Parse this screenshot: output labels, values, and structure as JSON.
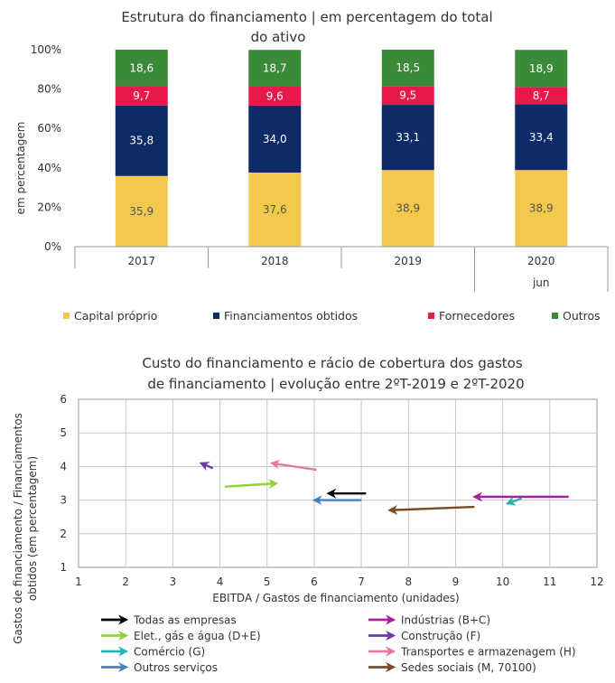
{
  "chart_data": [
    {
      "type": "bar",
      "stacked": true,
      "title_line1": "Estrutura do financiamento | em percentagem do total",
      "title_line2": "do ativo",
      "ylabel": "em percentagem",
      "ylim": [
        0,
        100
      ],
      "yticks": [
        "0%",
        "20%",
        "40%",
        "60%",
        "80%",
        "100%"
      ],
      "categories": [
        "2017",
        "2018",
        "2019",
        "2020"
      ],
      "sub_label": "jun",
      "series": [
        {
          "name": "Capital próprio",
          "color": "#f2c94c",
          "labelColor": "#555555",
          "values": [
            35.9,
            37.6,
            38.9,
            38.9
          ],
          "labels": [
            "35,9",
            "37,6",
            "38,9",
            "38,9"
          ]
        },
        {
          "name": "Financiamentos obtidos",
          "color": "#0d2b66",
          "labelColor": "#ffffff",
          "values": [
            35.8,
            34.0,
            33.1,
            33.4
          ],
          "labels": [
            "35,8",
            "34,0",
            "33,1",
            "33,4"
          ]
        },
        {
          "name": "Fornecedores",
          "color": "#e8194b",
          "labelColor": "#ffffff",
          "values": [
            9.7,
            9.6,
            9.5,
            8.7
          ],
          "labels": [
            "9,7",
            "9,6",
            "9,5",
            "8,7"
          ]
        },
        {
          "name": "Outros",
          "color": "#3a8a3a",
          "labelColor": "#ffffff",
          "values": [
            18.6,
            18.7,
            18.5,
            18.9
          ],
          "labels": [
            "18,6",
            "18,7",
            "18,5",
            "18,9"
          ]
        }
      ]
    },
    {
      "type": "scatter",
      "variant": "arrows",
      "title_line1": "Custo do financiamento e rácio de cobertura dos gastos",
      "title_line2": "de financiamento | evolução entre 2ºT-2019 e 2ºT-2020",
      "xlabel": "EBITDA / Gastos de financiamento (unidades)",
      "ylabel_line1": "Gastos de financiamento / Financiamentos",
      "ylabel_line2": "obtidos (em percentagem)",
      "xlim": [
        1,
        12
      ],
      "ylim": [
        1,
        6
      ],
      "xticks": [
        "1",
        "2",
        "3",
        "4",
        "5",
        "6",
        "7",
        "8",
        "9",
        "10",
        "11",
        "12"
      ],
      "yticks": [
        "1",
        "2",
        "3",
        "4",
        "5",
        "6"
      ],
      "grid": true,
      "series": [
        {
          "name": "Todas as empresas",
          "color": "#000000",
          "from": [
            7.1,
            3.2
          ],
          "to": [
            6.3,
            3.2
          ]
        },
        {
          "name": "Elet., gás e água (D+E)",
          "color": "#8fd43a",
          "from": [
            4.1,
            3.4
          ],
          "to": [
            5.2,
            3.5
          ]
        },
        {
          "name": "Comércio (G)",
          "color": "#2bb3b3",
          "from": [
            10.4,
            3.05
          ],
          "to": [
            10.1,
            2.9
          ]
        },
        {
          "name": "Outros serviços",
          "color": "#4a7fc1",
          "from": [
            7.0,
            3.0
          ],
          "to": [
            6.0,
            3.0
          ]
        },
        {
          "name": "Indústrias (B+C)",
          "color": "#a3219b",
          "from": [
            11.4,
            3.1
          ],
          "to": [
            9.4,
            3.1
          ]
        },
        {
          "name": "Construção (F)",
          "color": "#6a3aa6",
          "from": [
            3.85,
            3.95
          ],
          "to": [
            3.6,
            4.1
          ]
        },
        {
          "name": "Transportes e armazenagem (H)",
          "color": "#e27aa5",
          "from": [
            6.05,
            3.9
          ],
          "to": [
            5.1,
            4.1
          ]
        },
        {
          "name": "Sedes sociais (M, 70100)",
          "color": "#7a4a25",
          "from": [
            9.4,
            2.8
          ],
          "to": [
            7.6,
            2.7
          ]
        }
      ]
    }
  ]
}
